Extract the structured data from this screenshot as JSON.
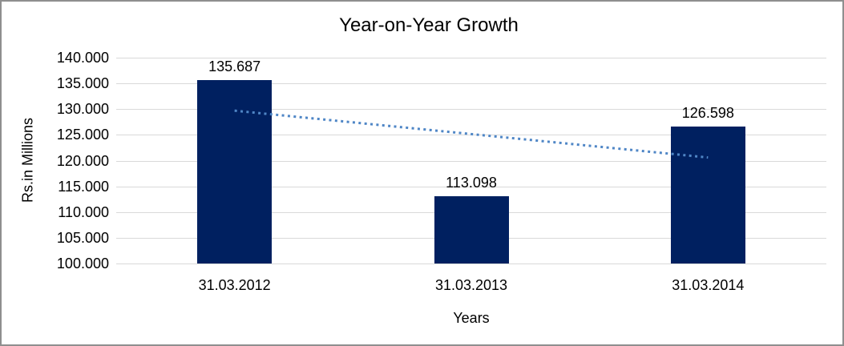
{
  "chart_data": {
    "type": "bar",
    "title": "Year-on-Year Growth",
    "xlabel": "Years",
    "ylabel": "Rs.in Millions",
    "categories": [
      "31.03.2012",
      "31.03.2013",
      "31.03.2014"
    ],
    "values": [
      135.687,
      113.098,
      126.598
    ],
    "data_labels": [
      "135.687",
      "113.098",
      "126.598"
    ],
    "ylim": [
      100,
      140
    ],
    "ytick_step": 5,
    "ytick_labels": [
      "140.000",
      "135.000",
      "130.000",
      "125.000",
      "120.000",
      "115.000",
      "110.000",
      "105.000",
      "100.000"
    ],
    "grid": true,
    "legend": "none",
    "trendline": {
      "type": "linear",
      "style": "dotted",
      "start_value": 129.7,
      "end_value": 120.6
    },
    "colors": {
      "bar": "#002060",
      "gridline": "#d9d9d9",
      "trendline": "#4f86c6",
      "text": "#000000",
      "frame_border": "#8f8f8f",
      "background": "#ffffff"
    }
  }
}
